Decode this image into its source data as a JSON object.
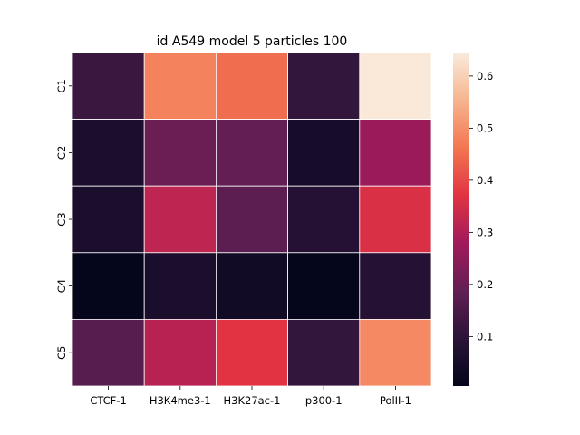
{
  "chart_data": {
    "type": "heatmap",
    "title": "id A549 model 5 particles 100",
    "xlabel": "",
    "ylabel": "",
    "columns": [
      "CTCF-1",
      "H3K4me3-1",
      "H3K27ac-1",
      "p300-1",
      "PolII-1"
    ],
    "rows": [
      "C1",
      "C2",
      "C3",
      "C4",
      "C5"
    ],
    "values": [
      [
        0.12,
        0.48,
        0.45,
        0.11,
        0.64
      ],
      [
        0.06,
        0.2,
        0.19,
        0.05,
        0.27
      ],
      [
        0.06,
        0.32,
        0.18,
        0.08,
        0.36
      ],
      [
        0.01,
        0.06,
        0.04,
        0.01,
        0.08
      ],
      [
        0.17,
        0.31,
        0.37,
        0.11,
        0.49
      ]
    ],
    "colorbar": {
      "min": 0.005,
      "max": 0.645,
      "ticks": [
        0.1,
        0.2,
        0.3,
        0.4,
        0.5,
        0.6
      ],
      "tick_labels": [
        "0.1",
        "0.2",
        "0.3",
        "0.4",
        "0.5",
        "0.6"
      ],
      "colormap": "rocket"
    },
    "grid": false,
    "cell_separator_color": "#ffffff"
  }
}
